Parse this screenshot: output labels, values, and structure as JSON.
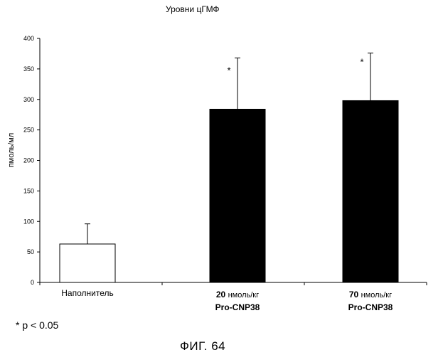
{
  "chart_data": {
    "type": "bar",
    "title": "Уровни цГМФ",
    "ylabel": "пмоль/мл",
    "xlabel": "",
    "ylim": [
      0,
      400
    ],
    "yticks": [
      0,
      50,
      100,
      150,
      200,
      250,
      300,
      350,
      400
    ],
    "grid": false,
    "categories": [
      {
        "dose": "",
        "unit": "",
        "line1": "Наполнитель",
        "line2": ""
      },
      {
        "dose": "20",
        "unit": "нмоль/кг",
        "line1": "",
        "line2": "Pro-CNP38"
      },
      {
        "dose": "70",
        "unit": "нмоль/кг",
        "line1": "",
        "line2": "Pro-CNP38"
      }
    ],
    "values": [
      63,
      284,
      298
    ],
    "error_upper": [
      96,
      368,
      376
    ],
    "fills": [
      "#ffffff",
      "#000000",
      "#000000"
    ],
    "significance": [
      "",
      "*",
      "*"
    ],
    "footnote": "* p < 0.05"
  },
  "figure_label": "ФИГ. 64"
}
